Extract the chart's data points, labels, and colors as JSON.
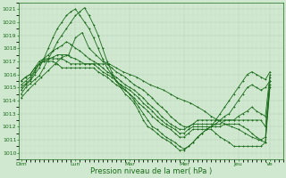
{
  "xlabel": "Pression niveau de la mer( hPa )",
  "bg_color": "#d0e8d0",
  "grid_color_major": "#b0ccb0",
  "grid_color_minor": "#c0dcc0",
  "line_color": "#1a6b1a",
  "ylim": [
    1009.5,
    1021.5
  ],
  "yticks": [
    1010,
    1011,
    1012,
    1013,
    1014,
    1015,
    1016,
    1017,
    1018,
    1019,
    1020,
    1021
  ],
  "xtick_labels": [
    "Dim",
    "Lun",
    "Mar",
    "Mer",
    "Jeu",
    "Ve"
  ],
  "xtick_positions": [
    0,
    24,
    48,
    72,
    96,
    110
  ],
  "xlim": [
    -1,
    116
  ],
  "lines": [
    {
      "x": [
        0,
        2,
        4,
        6,
        8,
        10,
        12,
        14,
        16,
        18,
        20,
        22,
        24,
        26,
        28,
        30,
        32,
        34,
        36,
        38,
        40,
        42,
        44,
        46,
        48,
        50,
        52,
        54,
        56,
        58,
        60,
        62,
        64,
        66,
        68,
        70,
        72,
        74,
        76,
        78,
        80,
        82,
        84,
        86,
        88,
        90,
        92,
        94,
        96,
        98,
        100,
        102,
        104,
        106,
        108,
        110
      ],
      "y": [
        1014.5,
        1015.0,
        1015.3,
        1015.6,
        1015.9,
        1016.5,
        1017.2,
        1017.8,
        1018.5,
        1019.0,
        1019.5,
        1020.0,
        1020.5,
        1020.8,
        1021.1,
        1020.5,
        1019.8,
        1019.0,
        1018.0,
        1017.0,
        1016.2,
        1015.5,
        1015.0,
        1014.5,
        1014.2,
        1013.8,
        1013.2,
        1012.5,
        1012.0,
        1011.8,
        1011.5,
        1011.2,
        1011.0,
        1010.8,
        1010.5,
        1010.2,
        1010.2,
        1010.5,
        1010.8,
        1011.2,
        1011.5,
        1011.8,
        1012.0,
        1012.5,
        1013.0,
        1013.5,
        1014.0,
        1014.5,
        1015.0,
        1015.5,
        1016.0,
        1016.2,
        1016.0,
        1015.8,
        1015.6,
        1016.2
      ]
    },
    {
      "x": [
        0,
        2,
        4,
        6,
        8,
        10,
        12,
        14,
        16,
        18,
        20,
        22,
        24,
        26,
        28,
        30,
        32,
        34,
        36,
        38,
        40,
        42,
        44,
        46,
        48,
        50,
        52,
        54,
        56,
        58,
        60,
        62,
        64,
        66,
        68,
        70,
        72,
        74,
        76,
        78,
        80,
        82,
        84,
        86,
        88,
        90,
        92,
        94,
        96,
        98,
        100,
        102,
        104,
        106,
        108,
        110
      ],
      "y": [
        1014.8,
        1015.2,
        1015.5,
        1016.0,
        1016.5,
        1017.2,
        1018.0,
        1018.8,
        1019.5,
        1020.0,
        1020.5,
        1020.8,
        1021.0,
        1020.5,
        1020.0,
        1019.5,
        1018.8,
        1018.0,
        1017.2,
        1016.5,
        1016.0,
        1015.5,
        1015.2,
        1014.8,
        1014.5,
        1014.0,
        1013.5,
        1013.0,
        1012.5,
        1012.0,
        1011.8,
        1011.5,
        1011.2,
        1011.0,
        1010.8,
        1010.5,
        1010.3,
        1010.5,
        1010.8,
        1011.2,
        1011.5,
        1011.8,
        1012.0,
        1012.2,
        1012.5,
        1012.8,
        1013.0,
        1013.5,
        1014.0,
        1014.5,
        1015.0,
        1015.2,
        1015.0,
        1014.8,
        1015.0,
        1015.5
      ]
    },
    {
      "x": [
        0,
        2,
        4,
        6,
        8,
        10,
        12,
        14,
        16,
        18,
        20,
        22,
        24,
        26,
        28,
        30,
        32,
        34,
        36,
        38,
        40,
        42,
        44,
        46,
        48,
        50,
        52,
        54,
        56,
        58,
        60,
        62,
        64,
        66,
        68,
        70,
        72,
        74,
        76,
        78,
        80,
        82,
        84,
        86,
        88,
        90,
        92,
        94,
        96,
        98,
        100,
        102,
        104,
        106,
        108,
        110
      ],
      "y": [
        1015.0,
        1015.3,
        1015.6,
        1016.2,
        1016.8,
        1017.2,
        1017.5,
        1017.8,
        1018.0,
        1018.2,
        1018.5,
        1018.3,
        1018.0,
        1017.8,
        1017.5,
        1017.2,
        1017.0,
        1016.8,
        1016.5,
        1016.2,
        1016.0,
        1015.8,
        1015.5,
        1015.2,
        1015.0,
        1014.8,
        1014.5,
        1014.2,
        1013.8,
        1013.5,
        1013.2,
        1012.8,
        1012.5,
        1012.2,
        1012.0,
        1011.8,
        1011.8,
        1012.0,
        1012.2,
        1012.5,
        1012.5,
        1012.5,
        1012.5,
        1012.5,
        1012.5,
        1012.5,
        1012.5,
        1012.5,
        1012.8,
        1013.0,
        1013.2,
        1013.5,
        1013.2,
        1013.0,
        1012.8,
        1016.0
      ]
    },
    {
      "x": [
        0,
        2,
        4,
        6,
        8,
        10,
        12,
        14,
        16,
        18,
        20,
        22,
        24,
        26,
        28,
        30,
        32,
        34,
        36,
        38,
        40,
        42,
        44,
        46,
        48,
        50,
        52,
        54,
        56,
        58,
        60,
        62,
        64,
        66,
        68,
        70,
        72,
        74,
        76,
        78,
        80,
        82,
        84,
        86,
        88,
        90,
        92,
        94,
        96,
        98,
        100,
        102,
        104,
        106,
        108,
        110
      ],
      "y": [
        1015.2,
        1015.5,
        1015.8,
        1016.3,
        1016.8,
        1017.0,
        1017.2,
        1017.3,
        1017.5,
        1017.5,
        1017.5,
        1017.3,
        1017.2,
        1017.0,
        1016.8,
        1016.8,
        1016.8,
        1016.8,
        1016.8,
        1016.8,
        1016.5,
        1016.2,
        1016.0,
        1015.8,
        1015.5,
        1015.2,
        1015.0,
        1014.8,
        1014.5,
        1014.2,
        1013.8,
        1013.5,
        1013.2,
        1012.8,
        1012.5,
        1012.2,
        1012.0,
        1012.0,
        1012.2,
        1012.2,
        1012.2,
        1012.2,
        1012.2,
        1012.2,
        1012.2,
        1012.5,
        1012.5,
        1012.5,
        1012.5,
        1012.5,
        1012.5,
        1012.5,
        1012.5,
        1012.5,
        1012.0,
        1015.5
      ]
    },
    {
      "x": [
        0,
        2,
        4,
        6,
        8,
        10,
        12,
        14,
        16,
        18,
        20,
        22,
        24,
        26,
        28,
        30,
        32,
        34,
        36,
        38,
        40,
        42,
        44,
        46,
        48,
        50,
        52,
        54,
        56,
        58,
        60,
        62,
        64,
        66,
        68,
        70,
        72,
        74,
        76,
        78,
        80,
        82,
        84,
        86,
        88,
        90,
        92,
        94,
        96,
        98,
        100,
        102,
        104,
        106,
        108,
        110
      ],
      "y": [
        1015.5,
        1015.8,
        1016.0,
        1016.5,
        1017.0,
        1017.2,
        1017.2,
        1017.2,
        1017.2,
        1017.2,
        1017.0,
        1016.8,
        1016.8,
        1016.8,
        1016.8,
        1016.8,
        1016.8,
        1016.5,
        1016.2,
        1016.0,
        1015.8,
        1015.5,
        1015.2,
        1015.0,
        1014.8,
        1014.5,
        1014.2,
        1013.8,
        1013.5,
        1013.2,
        1012.8,
        1012.5,
        1012.2,
        1012.0,
        1011.8,
        1011.5,
        1011.5,
        1011.8,
        1012.0,
        1012.0,
        1012.0,
        1012.0,
        1012.0,
        1012.0,
        1012.0,
        1012.2,
        1012.2,
        1012.2,
        1012.2,
        1012.0,
        1011.8,
        1011.5,
        1011.2,
        1011.0,
        1011.2,
        1015.2
      ]
    },
    {
      "x": [
        0,
        2,
        4,
        6,
        8,
        10,
        12,
        14,
        16,
        18,
        20,
        22,
        24,
        26,
        28,
        30,
        32,
        34,
        36,
        38,
        40,
        42,
        44,
        46,
        48,
        50,
        52,
        54,
        56,
        58,
        60,
        62,
        64,
        66,
        68,
        70,
        72,
        74,
        76,
        78,
        80,
        82,
        84,
        86,
        88,
        90,
        92,
        94,
        96,
        98,
        100,
        102,
        104,
        106,
        108,
        110
      ],
      "y": [
        1015.5,
        1015.8,
        1016.0,
        1016.5,
        1016.8,
        1017.0,
        1017.0,
        1017.0,
        1016.8,
        1016.5,
        1016.5,
        1016.5,
        1016.5,
        1016.5,
        1016.5,
        1016.5,
        1016.5,
        1016.2,
        1016.0,
        1015.8,
        1015.5,
        1015.2,
        1015.0,
        1014.8,
        1014.5,
        1014.2,
        1013.8,
        1013.5,
        1013.2,
        1012.8,
        1012.5,
        1012.2,
        1012.0,
        1011.8,
        1011.5,
        1011.2,
        1011.2,
        1011.5,
        1011.8,
        1011.8,
        1011.8,
        1011.8,
        1011.8,
        1011.5,
        1011.2,
        1011.0,
        1010.8,
        1010.5,
        1010.5,
        1010.5,
        1010.5,
        1010.5,
        1010.5,
        1010.5,
        1010.8,
        1015.0
      ]
    },
    {
      "x": [
        0,
        3,
        6,
        9,
        12,
        15,
        18,
        21,
        24,
        27,
        30,
        33,
        36,
        39,
        42,
        45,
        48,
        51,
        54,
        57,
        60,
        63,
        66,
        69,
        72,
        75,
        78,
        81,
        84,
        87,
        90,
        93,
        96,
        99,
        102,
        105,
        108,
        110
      ],
      "y": [
        1014.2,
        1014.8,
        1015.3,
        1015.8,
        1016.3,
        1016.8,
        1017.3,
        1017.5,
        1018.8,
        1019.2,
        1018.0,
        1017.5,
        1017.0,
        1016.8,
        1016.5,
        1016.2,
        1016.0,
        1015.8,
        1015.5,
        1015.2,
        1015.0,
        1014.8,
        1014.5,
        1014.2,
        1014.0,
        1013.8,
        1013.5,
        1013.2,
        1012.8,
        1012.5,
        1012.2,
        1012.0,
        1011.8,
        1011.5,
        1011.2,
        1011.0,
        1010.8,
        1015.8
      ]
    }
  ]
}
